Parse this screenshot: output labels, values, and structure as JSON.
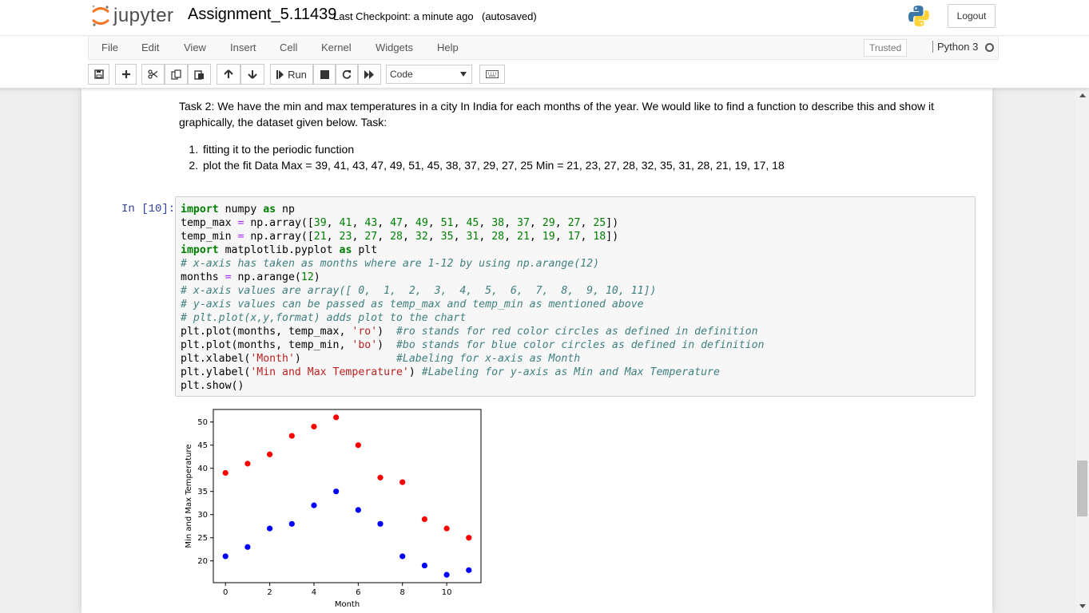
{
  "header": {
    "logo_text": "jupyter",
    "notebook_name": "Assignment_5.11439",
    "checkpoint": "Last Checkpoint: a minute ago",
    "autosave": "(autosaved)",
    "logout_label": "Logout"
  },
  "menubar": {
    "items": [
      "File",
      "Edit",
      "View",
      "Insert",
      "Cell",
      "Kernel",
      "Widgets",
      "Help"
    ],
    "trusted": "Trusted",
    "kernel": "Python 3"
  },
  "toolbar": {
    "icons": [
      "save-icon",
      "plus-icon",
      "cut-icon",
      "copy-icon",
      "paste-icon",
      "arrow-up-icon",
      "arrow-down-icon",
      "run-icon",
      "stop-icon",
      "restart-icon",
      "fast-forward-icon",
      "keyboard-icon"
    ],
    "run_label": "Run",
    "cell_type": "Code"
  },
  "markdown": {
    "paragraph": "Task 2: We have the min and max temperatures in a city In India for each months of the year. We would like to find a function to describe this and show it graphically, the dataset given below. Task:",
    "list": [
      "fitting it to the periodic function",
      "plot the fit Data Max = 39, 41, 43, 47, 49, 51, 45, 38, 37, 29, 27, 25 Min = 21, 23, 27, 28, 32, 35, 31, 28, 21, 19, 17, 18"
    ]
  },
  "code_cell": {
    "prompt": "In [10]:",
    "lines": [
      "import numpy as np",
      "temp_max = np.array([39, 41, 43, 47, 49, 51, 45, 38, 37, 29, 27, 25])",
      "temp_min = np.array([21, 23, 27, 28, 32, 35, 31, 28, 21, 19, 17, 18])",
      "import matplotlib.pyplot as plt",
      "# x-axis has taken as months where are 1-12 by using np.arange(12)",
      "months = np.arange(12)",
      "# x-axis values are array([ 0,  1,  2,  3,  4,  5,  6,  7,  8,  9, 10, 11])",
      "# y-axis values can be passed as temp_max and temp_min as mentioned above",
      "# plt.plot(x,y,format) adds plot to the chart",
      "plt.plot(months, temp_max, 'ro')  #ro stands for red color circles as defined in definition",
      "plt.plot(months, temp_min, 'bo')  #bo stands for blue color circles as defined in definition",
      "plt.xlabel('Month')               #Labeling for x-axis as Month",
      "plt.ylabel('Min and Max Temperature') #Labeling for y-axis as Min and Max Temperature",
      "plt.show()"
    ]
  },
  "chart_data": {
    "type": "scatter",
    "x": [
      0,
      1,
      2,
      3,
      4,
      5,
      6,
      7,
      8,
      9,
      10,
      11
    ],
    "series": [
      {
        "values": [
          39,
          41,
          43,
          47,
          49,
          51,
          45,
          38,
          37,
          29,
          27,
          25
        ],
        "color": "#ff0000"
      },
      {
        "values": [
          21,
          23,
          27,
          28,
          32,
          35,
          31,
          28,
          21,
          19,
          17,
          18
        ],
        "color": "#0000ff"
      }
    ],
    "xlabel": "Month",
    "ylabel": "Min and Max Temperature",
    "xticks": [
      0,
      2,
      4,
      6,
      8,
      10
    ],
    "yticks": [
      20,
      25,
      30,
      35,
      40,
      45,
      50
    ],
    "xlim": [
      -0.55,
      11.55
    ],
    "ylim": [
      15.3,
      52.7
    ]
  }
}
